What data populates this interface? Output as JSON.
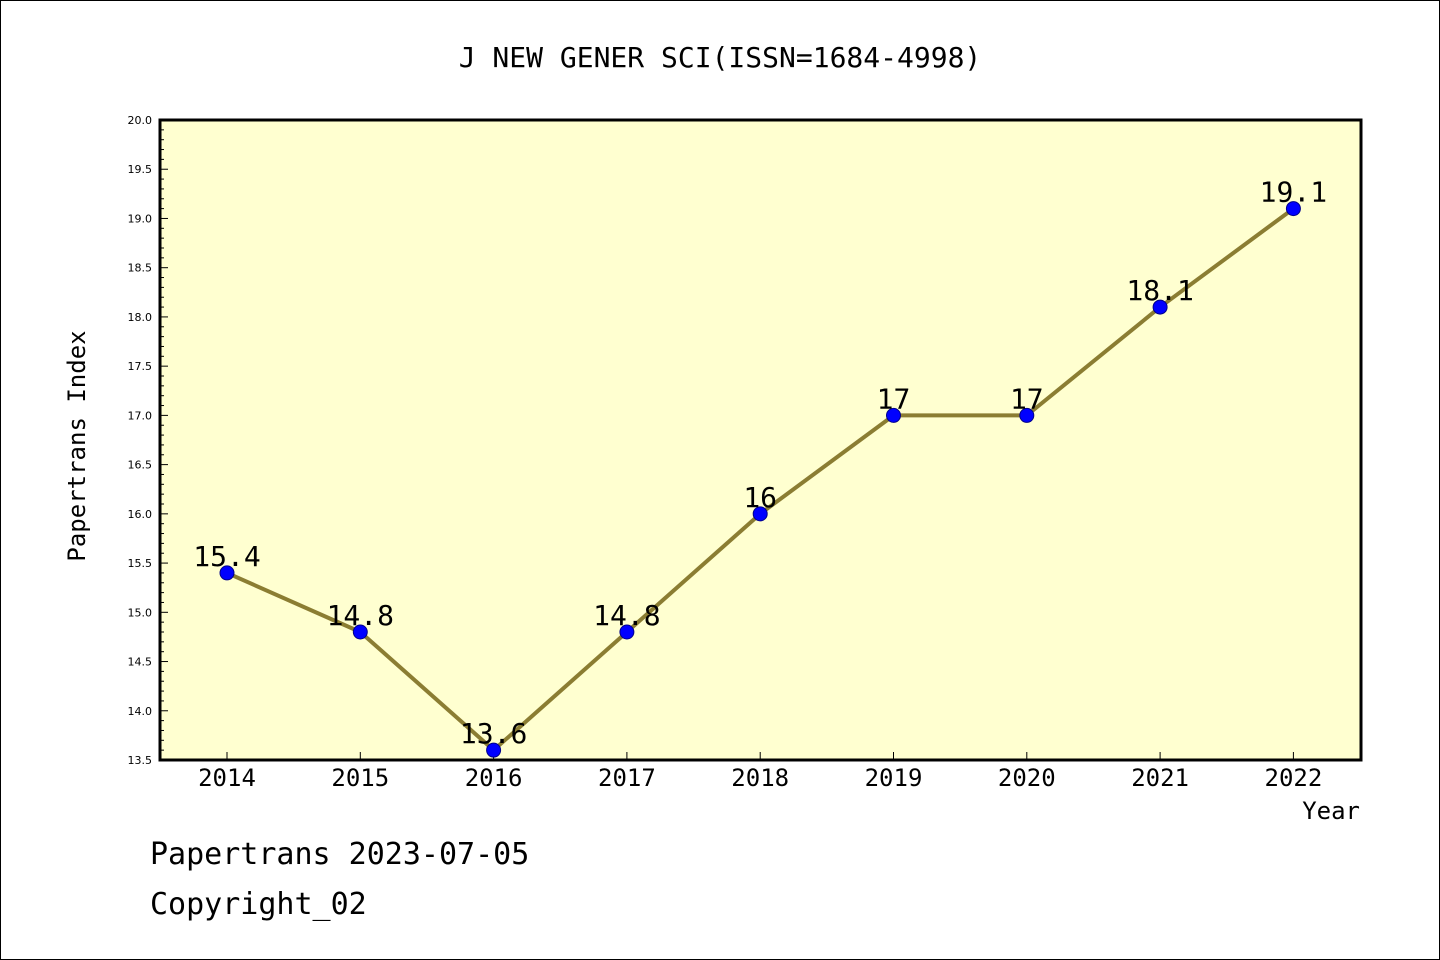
{
  "chart_data": {
    "type": "line",
    "title": "J NEW GENER SCI(ISSN=1684-4998)",
    "xlabel": "Year",
    "ylabel": "Papertrans Index",
    "categories": [
      "2014",
      "2015",
      "2016",
      "2017",
      "2018",
      "2019",
      "2020",
      "2021",
      "2022"
    ],
    "series": [
      {
        "values": [
          15.4,
          14.8,
          13.6,
          14.8,
          16,
          17,
          17,
          18.1,
          19.1
        ],
        "labels": [
          "15.4",
          "14.8",
          "13.6",
          "14.8",
          "16",
          "17",
          "17",
          "18.1",
          "19.1"
        ]
      }
    ],
    "ylim": [
      13.5,
      20.0
    ],
    "yticks": [
      "13.5",
      "14.0",
      "14.5",
      "15.0",
      "15.5",
      "16.0",
      "16.5",
      "17.0",
      "17.5",
      "18.0",
      "18.5",
      "19.0",
      "19.5",
      "20.0"
    ],
    "grid": false,
    "legend": "none"
  },
  "footer": {
    "line1": "Papertrans 2023-07-05",
    "line2": "Copyright_02"
  },
  "colors": {
    "plot_background": "#ffffd0",
    "line": "#8b7d32",
    "marker_fill": "#0000ff",
    "marker_edge": "#00008b",
    "axis": "#000000"
  }
}
